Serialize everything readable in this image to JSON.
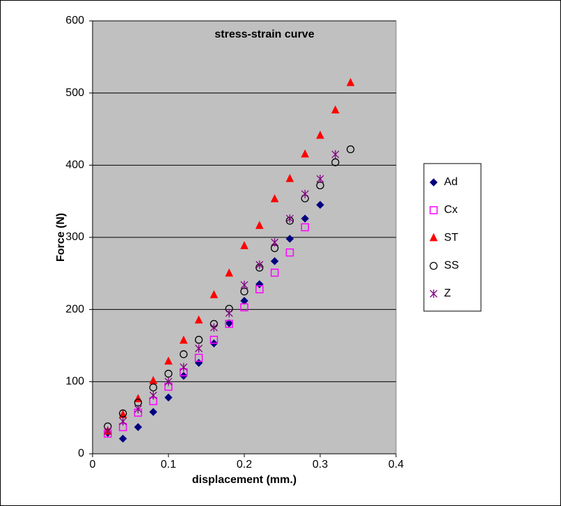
{
  "chart_data": {
    "type": "scatter",
    "title": "stress-strain curve",
    "x_label": "displacement (mm.)",
    "y_label": "Force (N)",
    "xlim": [
      0,
      0.4
    ],
    "xticks": [
      0,
      0.1,
      0.2,
      0.3,
      0.4
    ],
    "ylim": [
      0,
      600
    ],
    "yticks": [
      0,
      100,
      200,
      300,
      400,
      500,
      600
    ],
    "grid": true,
    "legend": "right",
    "series": [
      {
        "name": "Ad",
        "color": "#000080",
        "marker": "diamond",
        "x": [
          0.02,
          0.04,
          0.06,
          0.08,
          0.1,
          0.12,
          0.14,
          0.16,
          0.18,
          0.2,
          0.22,
          0.24,
          0.26,
          0.28,
          0.3
        ],
        "values": [
          29,
          21,
          37,
          58,
          78,
          108,
          126,
          153,
          181,
          212,
          235,
          267,
          298,
          326,
          345
        ]
      },
      {
        "name": "Cx",
        "color": "#ff00ff",
        "marker": "square",
        "x": [
          0.02,
          0.04,
          0.06,
          0.08,
          0.1,
          0.12,
          0.14,
          0.16,
          0.18,
          0.2,
          0.22,
          0.24,
          0.26,
          0.28
        ],
        "values": [
          28,
          37,
          57,
          73,
          93,
          113,
          133,
          158,
          180,
          203,
          228,
          251,
          279,
          314
        ]
      },
      {
        "name": "ST",
        "color": "#ff0000",
        "marker": "triangle",
        "x": [
          0.02,
          0.04,
          0.06,
          0.08,
          0.1,
          0.12,
          0.14,
          0.16,
          0.18,
          0.2,
          0.22,
          0.24,
          0.26,
          0.28,
          0.3,
          0.32,
          0.34
        ],
        "values": [
          31,
          54,
          76,
          101,
          128,
          157,
          185,
          220,
          250,
          288,
          316,
          353,
          381,
          415,
          441,
          476,
          514
        ]
      },
      {
        "name": "SS",
        "color": "#000000",
        "marker": "circle",
        "x": [
          0.02,
          0.04,
          0.06,
          0.08,
          0.1,
          0.12,
          0.14,
          0.16,
          0.18,
          0.2,
          0.22,
          0.24,
          0.26,
          0.28,
          0.3,
          0.32,
          0.34
        ],
        "values": [
          38,
          56,
          71,
          92,
          111,
          138,
          158,
          180,
          201,
          225,
          258,
          285,
          323,
          354,
          372,
          404,
          422
        ]
      },
      {
        "name": "Z",
        "color": "#800080",
        "marker": "star",
        "x": [
          0.02,
          0.04,
          0.06,
          0.08,
          0.1,
          0.12,
          0.14,
          0.16,
          0.18,
          0.2,
          0.22,
          0.24,
          0.26,
          0.28,
          0.3,
          0.32
        ],
        "values": [
          32,
          45,
          62,
          81,
          100,
          120,
          146,
          175,
          195,
          234,
          262,
          293,
          326,
          360,
          381,
          415
        ]
      }
    ]
  }
}
